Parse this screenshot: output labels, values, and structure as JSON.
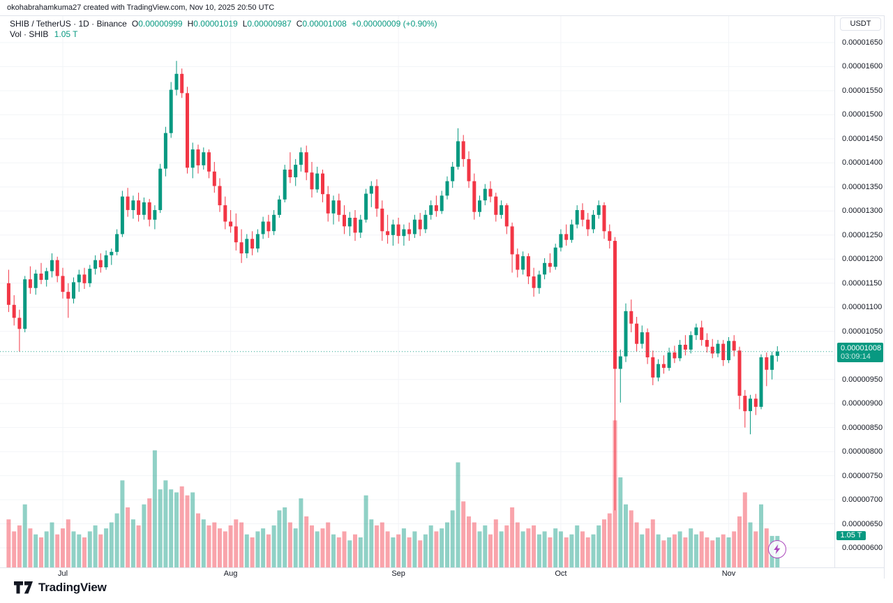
{
  "attribution": "okohabrahamkuma27 created with TradingView.com, Nov 10, 2025 20:50 UTC",
  "legend": {
    "title": "SHIB / TetherUS · 1D · Binance",
    "ohlc": [
      {
        "label": "O",
        "value": "0.00000999"
      },
      {
        "label": "H",
        "value": "0.00001019"
      },
      {
        "label": "L",
        "value": "0.00000987"
      },
      {
        "label": "C",
        "value": "0.00001008"
      }
    ],
    "change": "+0.00000009 (+0.90%)",
    "volume_label": "Vol · SHIB",
    "volume_value": "1.05 T"
  },
  "axis": {
    "currency_button": "USDT",
    "price_ticks": [
      "0.00001650",
      "0.00001600",
      "0.00001550",
      "0.00001500",
      "0.00001450",
      "0.00001400",
      "0.00001350",
      "0.00001300",
      "0.00001250",
      "0.00001200",
      "0.00001150",
      "0.00001100",
      "0.00001050",
      "0.00000950",
      "0.00000900",
      "0.00000850",
      "0.00000800",
      "0.00000750",
      "0.00000700",
      "0.00000650",
      "0.00000600"
    ],
    "time_ticks": [
      {
        "label": "Jul",
        "index": 10
      },
      {
        "label": "Aug",
        "index": 41
      },
      {
        "label": "Sep",
        "index": 72
      },
      {
        "label": "Oct",
        "index": 102
      },
      {
        "label": "Nov",
        "index": 133
      }
    ],
    "price_badge": {
      "price": "0.00001008",
      "countdown": "03:09:14"
    },
    "volume_badge": "1.05 T"
  },
  "footer": {
    "brand": "TradingView"
  },
  "colors": {
    "up": "#089981",
    "down": "#f23645",
    "vol_up": "rgba(8,153,129,0.45)",
    "vol_down": "rgba(242,54,69,0.45)",
    "grid": "#f2f4f7",
    "border": "#e0e3eb",
    "text": "#131722",
    "badge": "#089981",
    "lightning": "#ab47bc"
  },
  "chart_data": {
    "type": "candlestick+volume",
    "title": "SHIB / TetherUS · 1D · Binance",
    "symbol": "SHIB/USDT",
    "exchange": "Binance",
    "interval": "1D",
    "price_unit": "1e-8 USDT (e.g. 1008 = 0.00001008)",
    "ylim_price": [
      600,
      1650
    ],
    "grid": true,
    "last_close": "0.00001008",
    "x_months": [
      "Jul",
      "Aug",
      "Sep",
      "Oct",
      "Nov"
    ],
    "candles": [
      [
        1150,
        1178,
        1090,
        1105
      ],
      [
        1105,
        1125,
        1062,
        1078
      ],
      [
        1078,
        1095,
        1008,
        1055
      ],
      [
        1055,
        1165,
        1048,
        1158
      ],
      [
        1158,
        1185,
        1128,
        1140
      ],
      [
        1140,
        1178,
        1126,
        1170
      ],
      [
        1170,
        1192,
        1148,
        1157
      ],
      [
        1157,
        1182,
        1143,
        1175
      ],
      [
        1175,
        1212,
        1162,
        1198
      ],
      [
        1198,
        1205,
        1152,
        1165
      ],
      [
        1165,
        1182,
        1118,
        1132
      ],
      [
        1132,
        1150,
        1078,
        1118
      ],
      [
        1118,
        1162,
        1108,
        1152
      ],
      [
        1152,
        1178,
        1132,
        1168
      ],
      [
        1168,
        1182,
        1138,
        1150
      ],
      [
        1150,
        1188,
        1142,
        1180
      ],
      [
        1180,
        1208,
        1168,
        1198
      ],
      [
        1198,
        1212,
        1172,
        1183
      ],
      [
        1183,
        1218,
        1178,
        1208
      ],
      [
        1208,
        1222,
        1188,
        1215
      ],
      [
        1215,
        1262,
        1208,
        1252
      ],
      [
        1252,
        1342,
        1246,
        1330
      ],
      [
        1330,
        1348,
        1288,
        1302
      ],
      [
        1302,
        1332,
        1284,
        1322
      ],
      [
        1322,
        1338,
        1278,
        1292
      ],
      [
        1292,
        1328,
        1282,
        1318
      ],
      [
        1318,
        1325,
        1268,
        1282
      ],
      [
        1282,
        1312,
        1262,
        1302
      ],
      [
        1302,
        1398,
        1296,
        1388
      ],
      [
        1388,
        1475,
        1372,
        1462
      ],
      [
        1462,
        1568,
        1452,
        1552
      ],
      [
        1552,
        1612,
        1540,
        1585
      ],
      [
        1585,
        1596,
        1535,
        1545
      ],
      [
        1545,
        1558,
        1378,
        1390
      ],
      [
        1390,
        1442,
        1368,
        1428
      ],
      [
        1428,
        1438,
        1378,
        1395
      ],
      [
        1395,
        1432,
        1386,
        1422
      ],
      [
        1422,
        1428,
        1368,
        1382
      ],
      [
        1382,
        1402,
        1338,
        1352
      ],
      [
        1352,
        1368,
        1298,
        1312
      ],
      [
        1312,
        1330,
        1262,
        1278
      ],
      [
        1278,
        1302,
        1255,
        1268
      ],
      [
        1268,
        1295,
        1218,
        1235
      ],
      [
        1235,
        1262,
        1192,
        1212
      ],
      [
        1212,
        1252,
        1202,
        1242
      ],
      [
        1242,
        1258,
        1208,
        1222
      ],
      [
        1222,
        1262,
        1214,
        1252
      ],
      [
        1252,
        1288,
        1242,
        1278
      ],
      [
        1278,
        1292,
        1244,
        1258
      ],
      [
        1258,
        1302,
        1250,
        1292
      ],
      [
        1292,
        1332,
        1286,
        1324
      ],
      [
        1324,
        1396,
        1318,
        1386
      ],
      [
        1386,
        1422,
        1358,
        1370
      ],
      [
        1370,
        1408,
        1352,
        1396
      ],
      [
        1396,
        1432,
        1382,
        1422
      ],
      [
        1422,
        1436,
        1364,
        1380
      ],
      [
        1380,
        1402,
        1328,
        1345
      ],
      [
        1345,
        1392,
        1338,
        1378
      ],
      [
        1378,
        1386,
        1318,
        1335
      ],
      [
        1335,
        1352,
        1278,
        1295
      ],
      [
        1295,
        1332,
        1272,
        1322
      ],
      [
        1322,
        1336,
        1278,
        1292
      ],
      [
        1292,
        1312,
        1252,
        1268
      ],
      [
        1268,
        1298,
        1248,
        1286
      ],
      [
        1286,
        1302,
        1238,
        1255
      ],
      [
        1255,
        1292,
        1244,
        1282
      ],
      [
        1282,
        1346,
        1276,
        1336
      ],
      [
        1336,
        1362,
        1308,
        1352
      ],
      [
        1352,
        1366,
        1288,
        1305
      ],
      [
        1305,
        1322,
        1238,
        1258
      ],
      [
        1258,
        1292,
        1232,
        1250
      ],
      [
        1250,
        1282,
        1228,
        1272
      ],
      [
        1272,
        1286,
        1232,
        1248
      ],
      [
        1248,
        1272,
        1228,
        1262
      ],
      [
        1262,
        1276,
        1238,
        1252
      ],
      [
        1252,
        1292,
        1244,
        1282
      ],
      [
        1282,
        1296,
        1248,
        1262
      ],
      [
        1262,
        1302,
        1254,
        1292
      ],
      [
        1292,
        1322,
        1282,
        1312
      ],
      [
        1312,
        1332,
        1288,
        1300
      ],
      [
        1300,
        1342,
        1294,
        1332
      ],
      [
        1332,
        1372,
        1324,
        1362
      ],
      [
        1362,
        1402,
        1348,
        1392
      ],
      [
        1392,
        1472,
        1386,
        1445
      ],
      [
        1445,
        1458,
        1392,
        1408
      ],
      [
        1408,
        1424,
        1348,
        1362
      ],
      [
        1362,
        1378,
        1282,
        1298
      ],
      [
        1298,
        1332,
        1288,
        1322
      ],
      [
        1322,
        1356,
        1312,
        1346
      ],
      [
        1346,
        1362,
        1318,
        1330
      ],
      [
        1330,
        1338,
        1278,
        1292
      ],
      [
        1292,
        1322,
        1284,
        1312
      ],
      [
        1312,
        1316,
        1252,
        1268
      ],
      [
        1268,
        1276,
        1172,
        1210
      ],
      [
        1210,
        1222,
        1162,
        1178
      ],
      [
        1178,
        1216,
        1168,
        1206
      ],
      [
        1206,
        1212,
        1148,
        1164
      ],
      [
        1164,
        1182,
        1122,
        1140
      ],
      [
        1140,
        1176,
        1128,
        1168
      ],
      [
        1168,
        1202,
        1158,
        1192
      ],
      [
        1192,
        1212,
        1172,
        1184
      ],
      [
        1184,
        1232,
        1178,
        1224
      ],
      [
        1224,
        1262,
        1216,
        1252
      ],
      [
        1252,
        1272,
        1228,
        1240
      ],
      [
        1240,
        1282,
        1234,
        1272
      ],
      [
        1272,
        1312,
        1264,
        1302
      ],
      [
        1302,
        1316,
        1268,
        1282
      ],
      [
        1282,
        1296,
        1248,
        1262
      ],
      [
        1262,
        1302,
        1254,
        1292
      ],
      [
        1292,
        1322,
        1284,
        1312
      ],
      [
        1312,
        1318,
        1242,
        1258
      ],
      [
        1258,
        1272,
        1222,
        1238
      ],
      [
        1238,
        1246,
        678,
        972
      ],
      [
        972,
        1012,
        902,
        998
      ],
      [
        998,
        1108,
        986,
        1092
      ],
      [
        1092,
        1116,
        1048,
        1066
      ],
      [
        1066,
        1080,
        1008,
        1024
      ],
      [
        1024,
        1062,
        1014,
        1048
      ],
      [
        1048,
        1056,
        982,
        996
      ],
      [
        996,
        1010,
        938,
        954
      ],
      [
        954,
        992,
        946,
        982
      ],
      [
        982,
        1000,
        962,
        974
      ],
      [
        974,
        1016,
        968,
        1006
      ],
      [
        1006,
        1020,
        984,
        994
      ],
      [
        994,
        1032,
        988,
        1022
      ],
      [
        1022,
        1042,
        1000,
        1012
      ],
      [
        1012,
        1050,
        1004,
        1042
      ],
      [
        1042,
        1066,
        1032,
        1058
      ],
      [
        1058,
        1072,
        1020,
        1032
      ],
      [
        1032,
        1046,
        1006,
        1018
      ],
      [
        1018,
        1034,
        994,
        1004
      ],
      [
        1004,
        1032,
        996,
        1024
      ],
      [
        1024,
        1032,
        978,
        990
      ],
      [
        990,
        1038,
        984,
        1030
      ],
      [
        1030,
        1042,
        998,
        1010
      ],
      [
        1010,
        1018,
        888,
        916
      ],
      [
        916,
        928,
        850,
        884
      ],
      [
        884,
        918,
        836,
        910
      ],
      [
        910,
        920,
        876,
        893
      ],
      [
        893,
        1002,
        888,
        996
      ],
      [
        996,
        1006,
        936,
        970
      ],
      [
        970,
        1008,
        950,
        1000
      ],
      [
        999,
        1019,
        987,
        1008
      ]
    ],
    "volumes_T": [
      1.6,
      1.2,
      1.4,
      2.1,
      1.3,
      1.1,
      1.0,
      1.2,
      1.5,
      1.1,
      1.3,
      1.6,
      1.2,
      1.1,
      1.0,
      1.2,
      1.4,
      1.1,
      1.3,
      1.5,
      1.8,
      2.9,
      2.0,
      1.6,
      1.4,
      2.1,
      2.3,
      3.9,
      2.6,
      2.9,
      2.6,
      2.5,
      2.7,
      2.4,
      2.5,
      1.8,
      1.6,
      1.4,
      1.5,
      1.3,
      1.2,
      1.4,
      1.6,
      1.5,
      1.1,
      1.0,
      1.2,
      1.3,
      1.1,
      1.4,
      1.9,
      2.0,
      1.5,
      1.3,
      2.3,
      1.7,
      1.4,
      1.2,
      1.3,
      1.5,
      1.1,
      1.0,
      1.2,
      0.9,
      1.1,
      1.0,
      2.4,
      1.6,
      1.4,
      1.5,
      1.2,
      1.0,
      1.1,
      1.3,
      1.0,
      1.2,
      0.9,
      1.1,
      1.4,
      1.2,
      1.3,
      1.5,
      1.9,
      3.5,
      2.2,
      1.7,
      1.5,
      1.2,
      1.4,
      1.1,
      1.6,
      1.2,
      1.4,
      2.0,
      1.5,
      1.2,
      1.3,
      1.4,
      1.1,
      1.2,
      1.0,
      1.3,
      1.2,
      1.0,
      1.1,
      1.4,
      1.2,
      1.0,
      1.1,
      1.4,
      1.6,
      1.8,
      4.9,
      3.0,
      2.1,
      1.9,
      1.5,
      1.1,
      1.3,
      1.6,
      1.1,
      0.9,
      1.0,
      1.1,
      1.2,
      1.0,
      1.3,
      1.1,
      1.2,
      1.0,
      0.9,
      1.0,
      1.1,
      1.0,
      1.2,
      1.7,
      2.5,
      1.5,
      1.2,
      2.1,
      1.3,
      1.05,
      1.05
    ]
  }
}
